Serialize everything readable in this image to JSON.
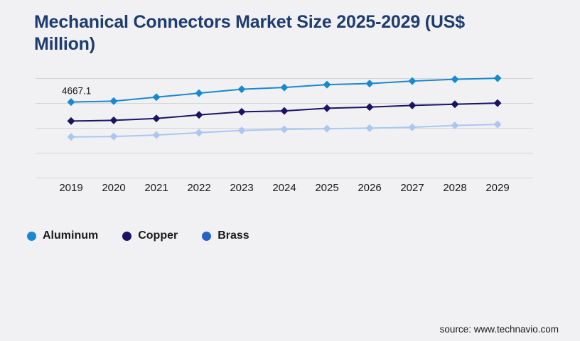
{
  "header": {
    "title": "Mechanical Connectors Market Size 2025-2029 (US$ Million)"
  },
  "chart_data": {
    "type": "line",
    "title": "Mechanical Connectors Market Size 2025-2029 (US$ Million)",
    "x": [
      2019,
      2020,
      2021,
      2022,
      2023,
      2024,
      2025,
      2026,
      2027,
      2028,
      2029
    ],
    "series": [
      {
        "name": "Aluminum",
        "color": "#1789cf",
        "marker": "diamond",
        "values": [
          4667.1,
          4684.2,
          4764.2,
          4845.7,
          4924.2,
          4960.0,
          5017.1,
          5038.5,
          5088.5,
          5124.2,
          5145.7
        ]
      },
      {
        "name": "Copper",
        "color": "#1b1464",
        "marker": "diamond",
        "values": [
          4284.2,
          4298.5,
          4335.7,
          4407.1,
          4470.0,
          4488.5,
          4541.4,
          4564.2,
          4598.5,
          4621.4,
          4645.7
        ]
      },
      {
        "name": "Brass",
        "color": "#a9c7f2",
        "legend_color": "#2763c5",
        "marker": "diamond",
        "values": [
          3964.2,
          3974.2,
          4002.8,
          4050.0,
          4095.7,
          4117.1,
          4131.4,
          4141.4,
          4160.0,
          4195.7,
          4217.1
        ]
      }
    ],
    "annotation": {
      "text": "4667.1",
      "series": "Aluminum",
      "x": 2019
    },
    "ylim": [
      3140,
      5140
    ],
    "ytick_step": 500,
    "grid": "horizontal",
    "legend_position": "bottom-left",
    "xlabel": "",
    "ylabel": "",
    "note": "Only the 4667.1 data label is printed on the chart; other values estimated from plot positions."
  },
  "footer": {
    "source": "source: www.technavio.com"
  },
  "colors": {
    "background": "#f1f1f4",
    "title": "#1e3c6e",
    "gridline": "#d5d5d8",
    "axis_text": "#1a1a1a",
    "annotation_text": "#1a1a1a"
  }
}
